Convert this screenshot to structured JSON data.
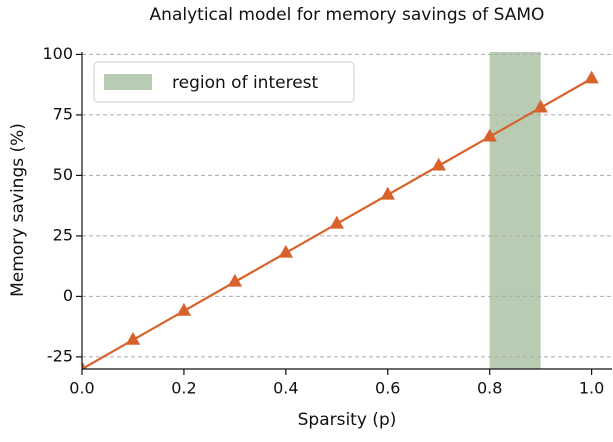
{
  "chart_data": {
    "type": "line",
    "title": "Analytical model for memory savings of SAMO",
    "x_label": "Sparsity (p)",
    "y_label": "Memory savings (%)",
    "x": [
      0.0,
      0.1,
      0.2,
      0.3,
      0.4,
      0.5,
      0.6,
      0.7,
      0.8,
      0.9,
      1.0
    ],
    "series": [
      {
        "name": "memory savings",
        "color": "#d9622b",
        "marker": "triangle",
        "values": [
          -30,
          -18,
          -6,
          6,
          18,
          30,
          42,
          54,
          66,
          78,
          90
        ]
      }
    ],
    "region": {
      "x": [
        0.8,
        0.9
      ],
      "label": "region of interest",
      "color": "#b8ccb4"
    },
    "xlim": [
      0,
      1.04
    ],
    "ylim": [
      -30,
      101
    ],
    "xticks": [
      {
        "value": 0,
        "label": "0.0"
      },
      0.2,
      0.4,
      0.6,
      0.8,
      {
        "value": 1,
        "label": "1.0"
      }
    ],
    "yticks": [
      -25,
      0,
      25,
      50,
      75,
      100
    ],
    "grid": "y",
    "legend": "upper left"
  }
}
